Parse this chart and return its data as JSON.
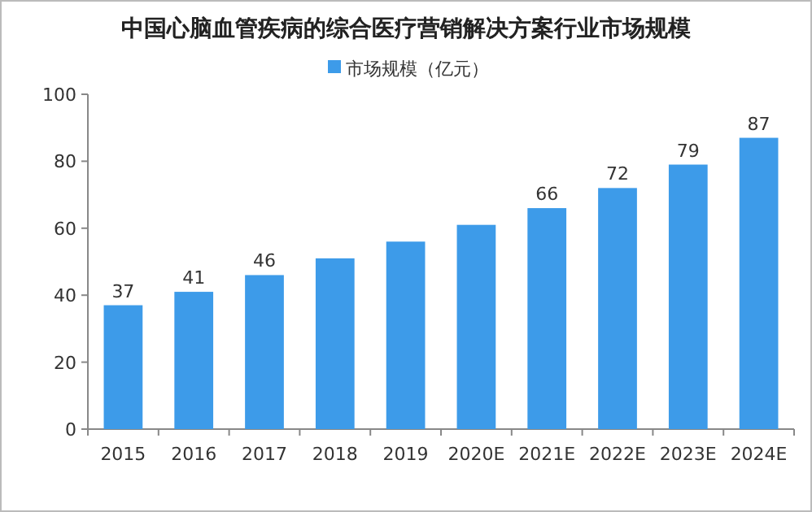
{
  "chart_data": {
    "type": "bar",
    "title": "中国心脑血管疾病的综合医疗营销解决方案行业市场规模",
    "categories": [
      "2015",
      "2016",
      "2017",
      "2018",
      "2019",
      "2020E",
      "2021E",
      "2022E",
      "2023E",
      "2024E"
    ],
    "series": [
      {
        "name": "市场规模（亿元）",
        "color": "#3d9be9",
        "values": [
          37,
          41,
          46,
          51,
          56,
          61,
          66,
          72,
          79,
          87
        ],
        "value_labels": [
          "37",
          "41",
          "46",
          null,
          null,
          null,
          "66",
          "72",
          "79",
          "87"
        ]
      }
    ],
    "ylim": [
      0,
      100
    ],
    "yticks": [
      0,
      20,
      40,
      60,
      80,
      100
    ],
    "grid": false,
    "legend": "top"
  }
}
